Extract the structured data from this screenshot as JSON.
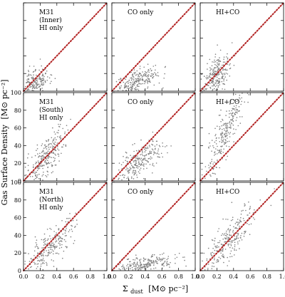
{
  "figure": {
    "ylabel_main": "Gas Surface Density",
    "ylabel_unit": "[M⊙ pc⁻²]",
    "xlabel_sigma": "Σ",
    "xlabel_sub": "dust",
    "xlabel_unit": "[M⊙ pc⁻²]",
    "point_color": "#808080",
    "line_color": "#b22222",
    "frame_color": "#000000"
  },
  "chart_data": {
    "type": "scatter",
    "xlim": [
      0,
      1.0
    ],
    "ylim": [
      0,
      100
    ],
    "x_ticks": [
      0.0,
      0.2,
      0.4,
      0.6,
      0.8,
      1.0
    ],
    "x_tick_labels": [
      "0.0",
      "0.2",
      "0.4",
      "0.6",
      "0.8",
      "1.0"
    ],
    "y_ticks": [
      0,
      20,
      40,
      60,
      80,
      100
    ],
    "y_tick_labels": [
      "0",
      "20",
      "40",
      "60",
      "80",
      "100"
    ],
    "grid": false,
    "reference_line": {
      "style": "dotted",
      "x": [
        0,
        1.0
      ],
      "y": [
        0,
        100
      ]
    },
    "rows": [
      {
        "region": "inner",
        "panels": [
          {
            "label": [
              "M31",
              "(Inner)",
              "HI only"
            ],
            "slope": 45,
            "x_center": 0.13,
            "x_spread": 0.09,
            "scatter": 10,
            "x_max": 0.7
          },
          {
            "label": [
              "CO only"
            ],
            "slope": 35,
            "x_center": 0.3,
            "x_spread": 0.14,
            "scatter": 7,
            "x_max": 0.7
          },
          {
            "label": [
              "HI+CO"
            ],
            "slope": 85,
            "x_center": 0.18,
            "x_spread": 0.1,
            "scatter": 11,
            "x_max": 0.75
          }
        ]
      },
      {
        "region": "south",
        "panels": [
          {
            "label": [
              "M31",
              "(South)",
              "HI only"
            ],
            "slope": 100,
            "x_center": 0.25,
            "x_spread": 0.12,
            "scatter": 11,
            "x_max": 0.75
          },
          {
            "label": [
              "CO only"
            ],
            "slope": 65,
            "x_center": 0.33,
            "x_spread": 0.14,
            "scatter": 9,
            "x_max": 0.78
          },
          {
            "label": [
              "HI+CO"
            ],
            "slope": 180,
            "x_center": 0.3,
            "x_spread": 0.13,
            "scatter": 12,
            "x_max": 0.75
          }
        ]
      },
      {
        "region": "north",
        "panels": [
          {
            "label": [
              "M31",
              "(North)",
              "HI only"
            ],
            "slope": 85,
            "x_center": 0.3,
            "x_spread": 0.16,
            "scatter": 10,
            "x_max": 0.9
          },
          {
            "label": [
              "CO only"
            ],
            "slope": 18,
            "x_center": 0.38,
            "x_spread": 0.18,
            "scatter": 5,
            "x_max": 0.95
          },
          {
            "label": [
              "HI+CO"
            ],
            "slope": 100,
            "x_center": 0.32,
            "x_spread": 0.16,
            "scatter": 11,
            "x_max": 0.9
          }
        ]
      }
    ]
  }
}
